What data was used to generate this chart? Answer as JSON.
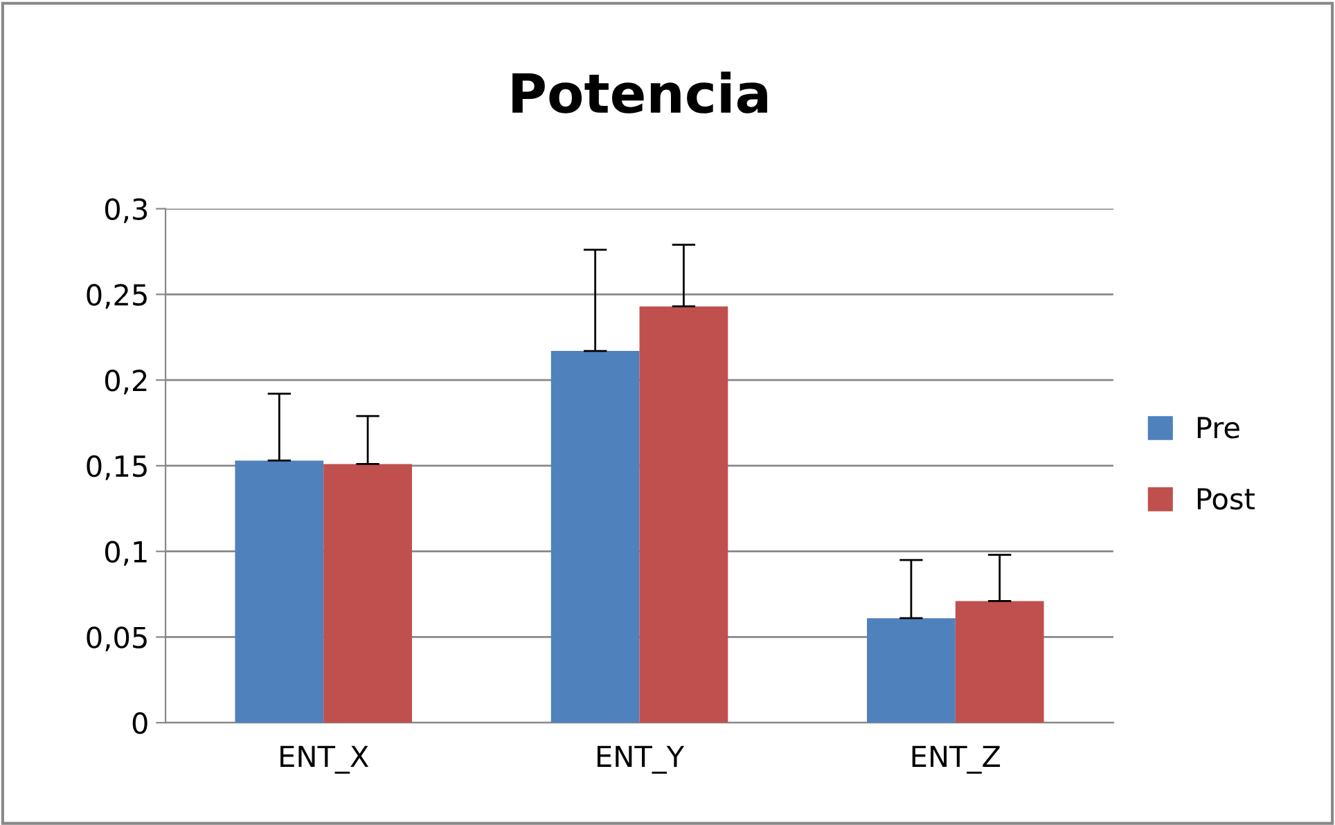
{
  "chart_data": {
    "type": "bar",
    "title": "Potencia",
    "categories": [
      "ENT_X",
      "ENT_Y",
      "ENT_Z"
    ],
    "series": [
      {
        "name": "Pre",
        "color": "#4f81bd",
        "values": [
          0.153,
          0.217,
          0.061
        ],
        "errors": [
          [
            0.153,
            0.192
          ],
          [
            0.217,
            0.276
          ],
          [
            0.061,
            0.095
          ]
        ]
      },
      {
        "name": "Post",
        "color": "#c0504d",
        "values": [
          0.151,
          0.243,
          0.071
        ],
        "errors": [
          [
            0.151,
            0.179
          ],
          [
            0.243,
            0.279
          ],
          [
            0.071,
            0.098
          ]
        ]
      }
    ],
    "ylim": [
      0,
      0.3
    ],
    "yticks": [
      {
        "value": 0,
        "label": "0"
      },
      {
        "value": 0.05,
        "label": "0,05"
      },
      {
        "value": 0.1,
        "label": "0,1"
      },
      {
        "value": 0.15,
        "label": "0,15"
      },
      {
        "value": 0.2,
        "label": "0,2"
      },
      {
        "value": 0.25,
        "label": "0,25"
      },
      {
        "value": 0.3,
        "label": "0,3"
      }
    ],
    "grid": "y",
    "legend": "right"
  }
}
